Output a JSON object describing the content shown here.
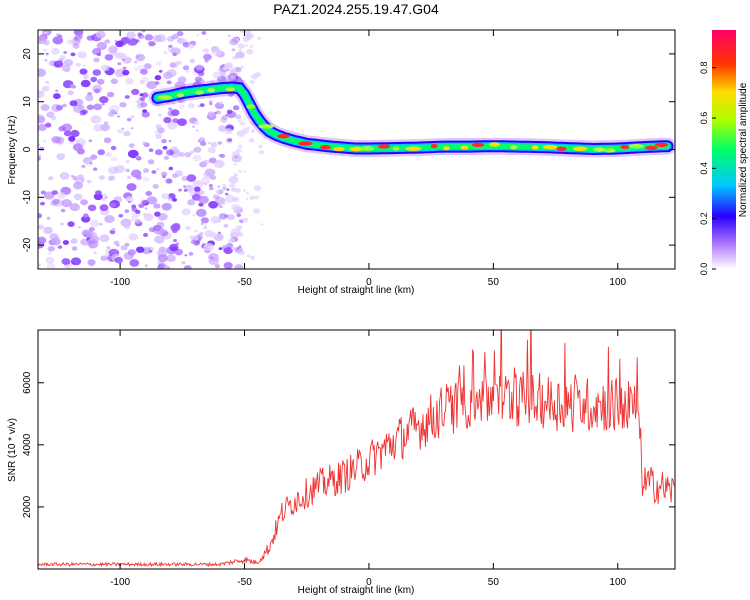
{
  "title": "PAZ1.2024.255.19.47.G04",
  "chart_data": [
    {
      "type": "heatmap",
      "xlabel": "Height of straight line (km)",
      "ylabel": "Frequency (Hz)",
      "xlim": [
        -133,
        123
      ],
      "ylim": [
        -25,
        25
      ],
      "xticks": [
        -100,
        -50,
        0,
        50,
        100
      ],
      "yticks": [
        -20,
        -10,
        0,
        10,
        20
      ],
      "ridge": {
        "x": [
          -85,
          -80,
          -75,
          -70,
          -65,
          -60,
          -55,
          -52,
          -50,
          -48,
          -46,
          -44,
          -42,
          -40,
          -37,
          -34,
          -30,
          -25,
          -20,
          -15,
          -10,
          -5,
          0,
          10,
          20,
          30,
          40,
          50,
          60,
          70,
          80,
          90,
          100,
          110,
          120
        ],
        "y": [
          10.8,
          11.2,
          11.8,
          12.2,
          12.5,
          12.8,
          13.0,
          12.8,
          11.5,
          9.5,
          7.5,
          6.0,
          4.8,
          3.8,
          3.0,
          2.4,
          1.8,
          1.2,
          0.9,
          0.6,
          0.4,
          0.2,
          0.2,
          0.3,
          0.4,
          0.6,
          0.6,
          0.7,
          0.6,
          0.5,
          0.3,
          0.1,
          0.2,
          0.5,
          0.7
        ]
      },
      "colorbar": {
        "label": "Normalized spectral amplitude",
        "range": [
          0,
          0.95
        ],
        "ticks": [
          0.0,
          0.2,
          0.4,
          0.6,
          0.8
        ]
      }
    },
    {
      "type": "line",
      "xlabel": "Height of straight line (km)",
      "ylabel": "SNR (10 * v/v)",
      "xlim": [
        -133,
        123
      ],
      "ylim": [
        0,
        7700
      ],
      "xticks": [
        -100,
        -50,
        0,
        50,
        100
      ],
      "yticks": [
        2000,
        4000,
        6000
      ],
      "color": "#ee3333",
      "envelope": {
        "x": [
          -133,
          -60,
          -50,
          -45,
          -40,
          -35,
          -30,
          -20,
          -10,
          0,
          10,
          20,
          30,
          40,
          50,
          60,
          70,
          80,
          90,
          100,
          108,
          110,
          115,
          123
        ],
        "y": [
          150,
          150,
          300,
          200,
          700,
          1800,
          2200,
          2700,
          3000,
          3500,
          4100,
          4600,
          5100,
          5400,
          5500,
          5500,
          5400,
          5300,
          5300,
          5300,
          5200,
          2800,
          2700,
          2500
        ]
      }
    }
  ]
}
